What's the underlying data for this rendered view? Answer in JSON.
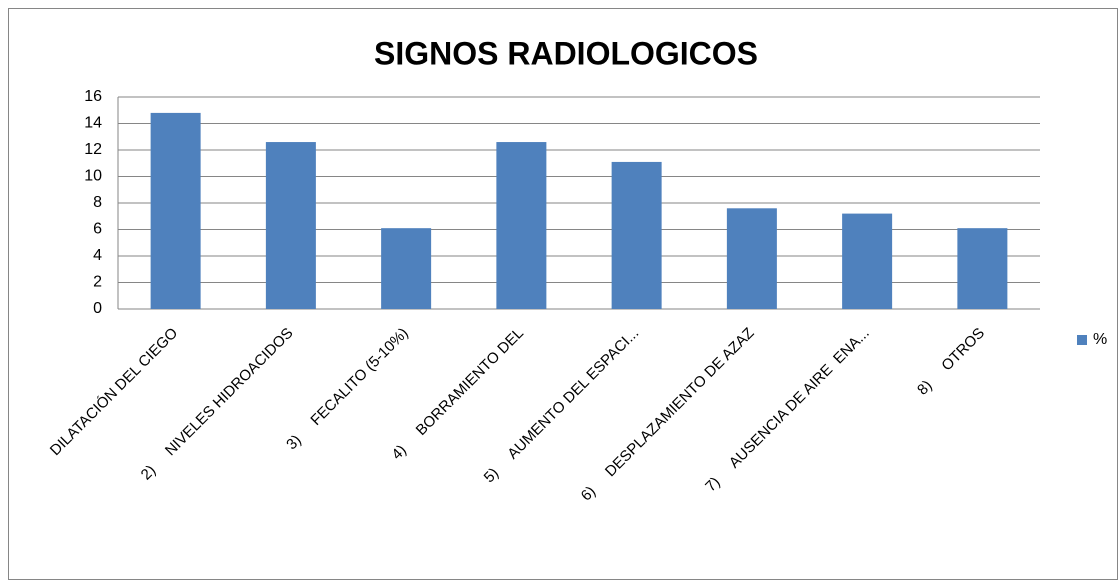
{
  "chart_data": {
    "type": "bar",
    "title": "SIGNOS RADIOLOGICOS",
    "categories": [
      "DILATACIÓN DEL CIEGO",
      "2)     NIVELES HIDROACIDOS",
      "3)     FECALITO (5-10%)",
      "4)     BORRAMIENTO DEL",
      "5)     AUMENTO DEL ESPACI...",
      "6)     DESPLAZAMIENTO DE AZAZ",
      "7)     AUSENCIA DE AIRE  ENA...",
      "8)     OTROS"
    ],
    "series": [
      {
        "name": "%",
        "color": "#4f81bd",
        "values": [
          14.8,
          12.6,
          6.1,
          12.6,
          11.1,
          7.6,
          7.2,
          6.1
        ]
      }
    ],
    "ylim": [
      0,
      16
    ],
    "yticks": [
      0,
      2,
      4,
      6,
      8,
      10,
      12,
      14,
      16
    ],
    "grid": true,
    "legend": "right"
  }
}
